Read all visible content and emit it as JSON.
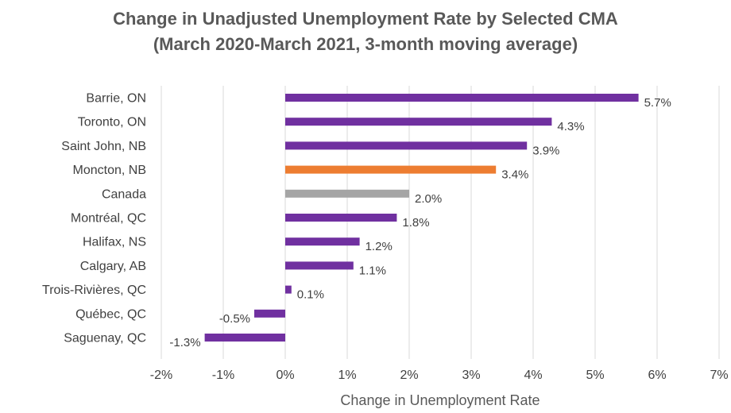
{
  "chart_data": {
    "type": "bar",
    "orientation": "horizontal",
    "title": "Change in Unadjusted Unemployment Rate by Selected CMA",
    "subtitle": "(March 2020-March 2021, 3-month moving average)",
    "xlabel": "Change in Unemployment Rate",
    "ylabel": "",
    "xlim": [
      -2,
      7
    ],
    "xticks": [
      "-2%",
      "-1%",
      "0%",
      "1%",
      "2%",
      "3%",
      "4%",
      "5%",
      "6%",
      "7%"
    ],
    "grid": true,
    "legend": "none",
    "categories": [
      "Barrie, ON",
      "Toronto, ON",
      "Saint John, NB",
      "Moncton, NB",
      "Canada",
      "Montréal, QC",
      "Halifax, NS",
      "Calgary, AB",
      "Trois-Rivières, QC",
      "Québec, QC",
      "Saguenay, QC"
    ],
    "values": [
      5.7,
      4.3,
      3.9,
      3.4,
      2.0,
      1.8,
      1.2,
      1.1,
      0.1,
      -0.5,
      -1.3
    ],
    "data_labels": [
      "5.7%",
      "4.3%",
      "3.9%",
      "3.4%",
      "2.0%",
      "1.8%",
      "1.2%",
      "1.1%",
      "0.1%",
      "-0.5%",
      "-1.3%"
    ],
    "colors": [
      "#7030A0",
      "#7030A0",
      "#7030A0",
      "#ED7D31",
      "#A5A5A5",
      "#7030A0",
      "#7030A0",
      "#7030A0",
      "#7030A0",
      "#7030A0",
      "#7030A0"
    ]
  },
  "colors": {
    "grid": "#d9d9d9",
    "text": "#404040",
    "title": "#595959"
  }
}
